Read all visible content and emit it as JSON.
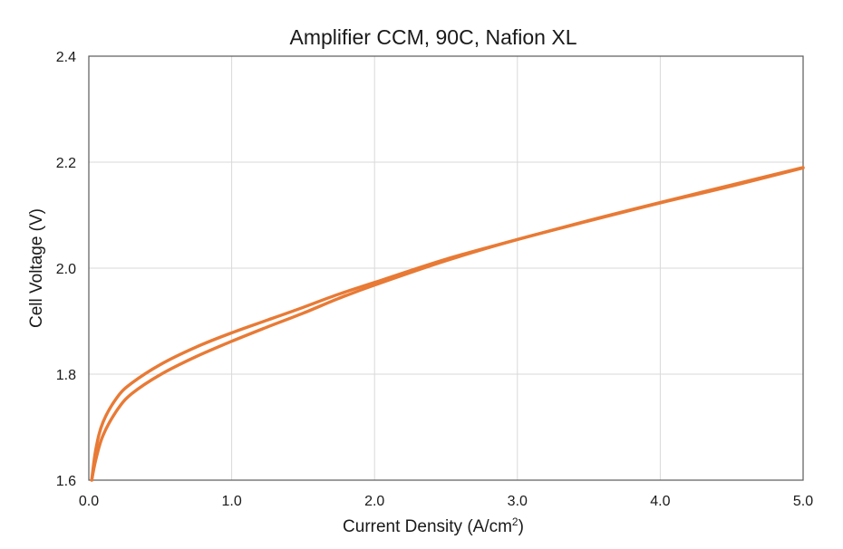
{
  "chart_data": {
    "type": "line",
    "title": "Amplifier CCM, 90C, Nafion XL",
    "xlabel": "Current Density (A/cm",
    "xlabel_sup": "2",
    "xlabel_suffix": ")",
    "ylabel": "Cell Voltage (V)",
    "xlim": [
      0,
      5.0
    ],
    "ylim": [
      1.6,
      2.4
    ],
    "x_ticks": [
      "0.0",
      "1.0",
      "2.0",
      "3.0",
      "4.0",
      "5.0"
    ],
    "y_ticks": [
      "1.6",
      "1.8",
      "2.0",
      "2.2",
      "2.4"
    ],
    "grid": true,
    "color": "#e87a35",
    "series": [
      {
        "x": [
          0.02,
          0.05,
          0.1,
          0.2,
          0.3,
          0.5,
          0.75,
          1.0,
          1.25,
          1.5,
          1.75,
          2.0,
          2.5,
          3.0,
          3.5,
          4.0,
          4.5,
          5.0
        ],
        "y": [
          1.6,
          1.66,
          1.71,
          1.757,
          1.783,
          1.818,
          1.851,
          1.878,
          1.902,
          1.926,
          1.951,
          1.973,
          2.017,
          2.054,
          2.09,
          2.124,
          2.157,
          2.19
        ]
      },
      {
        "x": [
          0.02,
          0.05,
          0.1,
          0.2,
          0.3,
          0.5,
          0.75,
          1.0,
          1.25,
          1.5,
          1.75,
          2.0,
          2.5,
          3.0,
          3.5,
          4.0,
          4.5,
          5.0
        ],
        "y": [
          1.6,
          1.64,
          1.685,
          1.733,
          1.763,
          1.799,
          1.833,
          1.862,
          1.889,
          1.915,
          1.943,
          1.968,
          2.014,
          2.054,
          2.089,
          2.123,
          2.155,
          2.189
        ]
      }
    ]
  }
}
